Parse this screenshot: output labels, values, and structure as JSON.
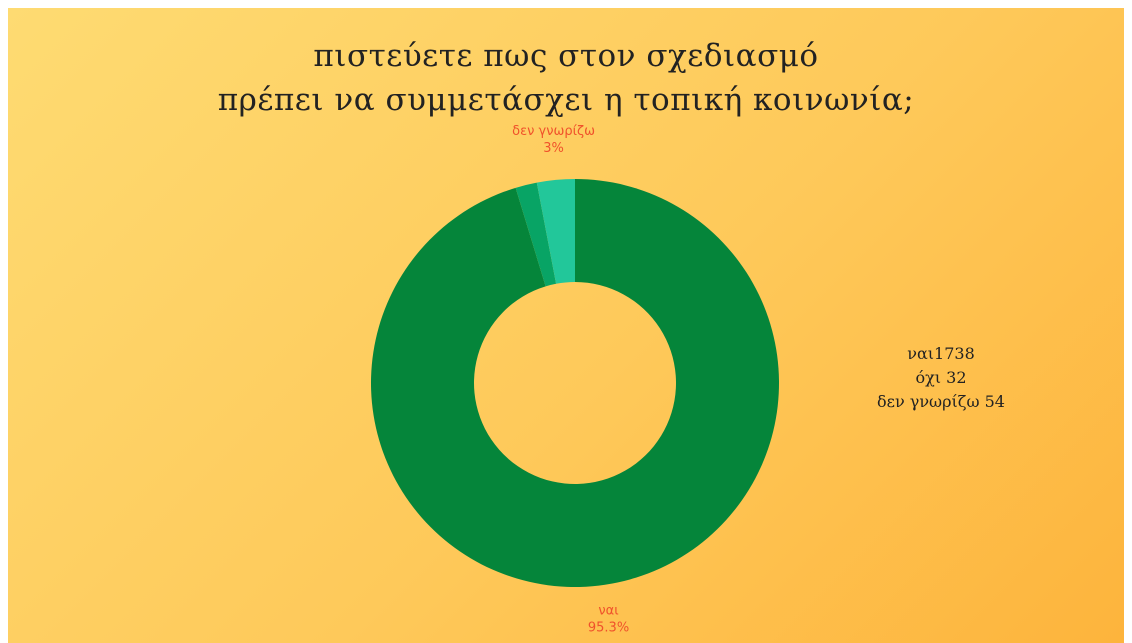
{
  "title": {
    "line1": "πιστεύετε πως στον σχεδιασμό",
    "line2": "πρέπει να συμμετάσχει η τοπική κοινωνία;"
  },
  "stats": [
    "ναι1738",
    "όχι 32",
    "δεν γνωρίζω 54"
  ],
  "colors": {
    "yes": "#05853a",
    "no": "#08a465",
    "dont_know": "#22c79a",
    "label": "#f0522b",
    "background_start": "#fedb72",
    "background_end": "#fdb43c"
  },
  "chart_data": {
    "type": "pie",
    "variant": "donut",
    "title": "πιστεύετε πως στον σχεδιασμό πρέπει να συμμετάσχει η τοπική κοινωνία;",
    "slices": [
      {
        "label": "ναι",
        "value": 95.3,
        "value_label": "95.3%",
        "color": "#05853a",
        "shows_label": true
      },
      {
        "label": "όχι",
        "value": 1.7,
        "value_label": "",
        "color": "#08a465",
        "shows_label": false
      },
      {
        "label": "δεν γνωρίζω",
        "value": 3.0,
        "value_label": "3%",
        "color": "#22c79a",
        "shows_label": true
      }
    ],
    "start_angle_deg": 0,
    "direction": "clockwise",
    "legend": "none"
  }
}
